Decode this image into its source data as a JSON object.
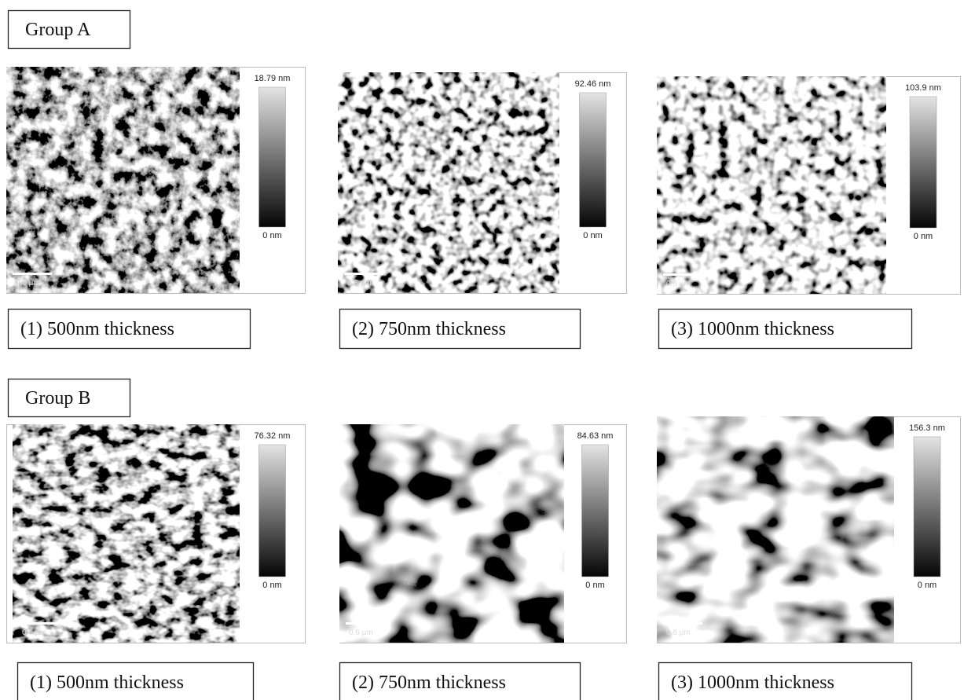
{
  "groups": [
    {
      "label": "Group A",
      "panels": [
        {
          "scale_max": "18.79 nm",
          "scale_min": "0 nm",
          "scale_bar": "0.6 µm",
          "caption": "(1) 500nm thickness"
        },
        {
          "scale_max": "92.46 nm",
          "scale_min": "0 nm",
          "scale_bar": "0.6 µm",
          "caption": "(2) 750nm thickness"
        },
        {
          "scale_max": "103.9 nm",
          "scale_min": "0 nm",
          "scale_bar": "0.6 µm",
          "caption": "(3) 1000nm thickness"
        }
      ]
    },
    {
      "label": "Group B",
      "panels": [
        {
          "scale_max": "76.32 nm",
          "scale_min": "0 nm",
          "scale_bar": "0.6 µm",
          "caption": "(1) 500nm thickness"
        },
        {
          "scale_max": "84.63 nm",
          "scale_min": "0 nm",
          "scale_bar": "0.6 µm",
          "caption": "(2) 750nm thickness"
        },
        {
          "scale_max": "156.3 nm",
          "scale_min": "0 nm",
          "scale_bar": "0.6 µm",
          "caption": "(3) 1000nm thickness"
        }
      ]
    }
  ]
}
